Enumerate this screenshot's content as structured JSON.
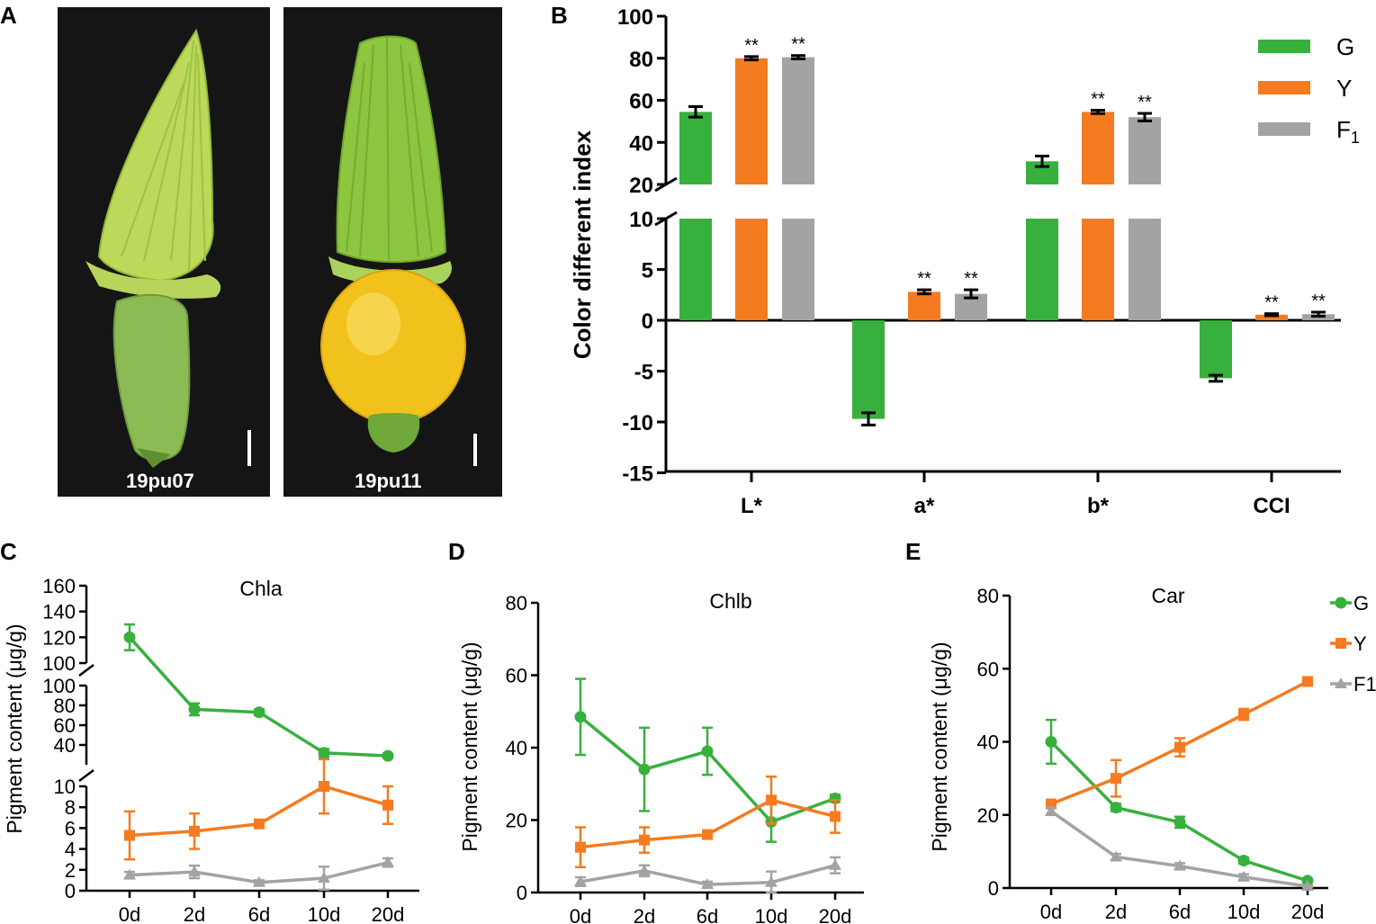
{
  "panels": {
    "A": {
      "letter": "A",
      "photos": [
        {
          "label": "19pu07"
        },
        {
          "label": "19pu11"
        }
      ]
    },
    "B": {
      "letter": "B",
      "ylabel": "Color different index",
      "yticks_upper": [
        "20",
        "40",
        "60",
        "80",
        "100"
      ],
      "yticks_lower": [
        "-15",
        "-10",
        "-5",
        "0",
        "5",
        "10"
      ],
      "categories": [
        "L*",
        "a*",
        "b*",
        "CCI"
      ],
      "legend": [
        {
          "name": "G",
          "sub": ""
        },
        {
          "name": "Y",
          "sub": ""
        },
        {
          "name": "F",
          "sub": "1"
        }
      ],
      "sig_label": "**"
    },
    "C": {
      "letter": "C",
      "title": "Chla",
      "ylabel": "Pigment content (μg/g)"
    },
    "D": {
      "letter": "D",
      "title": "Chlb",
      "ylabel": "Pigment content (μg/g)"
    },
    "E": {
      "letter": "E",
      "title": "Car",
      "ylabel": "Pigment content (μg/g)",
      "legend": [
        "G",
        "Y",
        "F1"
      ]
    }
  },
  "colors": {
    "G": "#38b03e",
    "Y": "#f47b20",
    "F1": "#a3a3a3",
    "photo_bg": "#111111",
    "fruit_green": "#8cbb55",
    "fruit_yellow": "#f1c21b",
    "flower_green": "#8ec63f",
    "flower_light": "#c9e26a"
  },
  "chart_data": [
    {
      "panel": "B",
      "type": "bar",
      "title": "",
      "xlabel": "",
      "ylabel": "Color different index",
      "categories": [
        "L*",
        "a*",
        "b*",
        "CCI"
      ],
      "axis_break": {
        "lower_range": [
          -15,
          10
        ],
        "upper_range": [
          20,
          100
        ]
      },
      "series": [
        {
          "name": "G",
          "values": [
            54.5,
            -9.7,
            31.0,
            -5.7
          ],
          "errors": [
            2.5,
            0.6,
            2.5,
            0.3
          ],
          "significant": [
            false,
            false,
            false,
            false
          ]
        },
        {
          "name": "Y",
          "values": [
            80.0,
            2.8,
            54.5,
            0.55
          ],
          "errors": [
            0.8,
            0.2,
            0.8,
            0.1
          ],
          "significant": [
            true,
            true,
            true,
            true
          ]
        },
        {
          "name": "F1",
          "values": [
            80.5,
            2.6,
            52.0,
            0.6
          ],
          "errors": [
            0.8,
            0.4,
            1.8,
            0.2
          ],
          "significant": [
            true,
            true,
            true,
            true
          ]
        }
      ]
    },
    {
      "panel": "C",
      "type": "line",
      "title": "Chla",
      "ylabel": "Pigment content (μg/g)",
      "categories": [
        "0d",
        "2d",
        "6d",
        "10d",
        "20d"
      ],
      "segments": [
        {
          "range": [
            0,
            10
          ],
          "ticks": [
            0,
            2,
            4,
            6,
            8,
            10
          ]
        },
        {
          "range": [
            20,
            100
          ],
          "ticks": [
            40,
            60,
            80,
            100
          ]
        },
        {
          "range": [
            100,
            160
          ],
          "ticks": [
            100,
            120,
            140,
            160
          ]
        }
      ],
      "series": [
        {
          "name": "G",
          "marker": "circle",
          "values": [
            120,
            76,
            73,
            32,
            29
          ],
          "errors": [
            10,
            6,
            3,
            4,
            2
          ]
        },
        {
          "name": "Y",
          "marker": "square",
          "values": [
            5.3,
            5.7,
            6.4,
            10.0,
            8.2
          ],
          "errors": [
            2.3,
            1.7,
            0.3,
            2.6,
            1.8
          ]
        },
        {
          "name": "F1",
          "marker": "triangle",
          "values": [
            1.5,
            1.8,
            0.8,
            1.2,
            2.7
          ],
          "errors": [
            0.3,
            0.6,
            0.2,
            1.1,
            0.4
          ]
        }
      ]
    },
    {
      "panel": "D",
      "type": "line",
      "title": "Chlb",
      "ylabel": "Pigment content (μg/g)",
      "categories": [
        "0d",
        "2d",
        "6d",
        "10d",
        "20d"
      ],
      "ylim": [
        0,
        80
      ],
      "yticks": [
        0,
        20,
        40,
        60,
        80
      ],
      "series": [
        {
          "name": "G",
          "marker": "circle",
          "values": [
            48.5,
            34,
            39,
            19.5,
            26
          ],
          "errors": [
            10.5,
            11.5,
            6.5,
            5.5,
            1
          ]
        },
        {
          "name": "Y",
          "marker": "square",
          "values": [
            12.5,
            14.5,
            16,
            25.5,
            21
          ],
          "errors": [
            5.5,
            3.5,
            0.8,
            6.5,
            4.5
          ]
        },
        {
          "name": "F1",
          "marker": "triangle",
          "values": [
            3,
            6,
            2.2,
            2.8,
            7.5
          ],
          "errors": [
            1.2,
            1.5,
            0.8,
            3,
            2.2
          ]
        }
      ]
    },
    {
      "panel": "E",
      "type": "line",
      "title": "Car",
      "ylabel": "Pigment content (μg/g)",
      "categories": [
        "0d",
        "2d",
        "6d",
        "10d",
        "20d"
      ],
      "ylim": [
        0,
        80
      ],
      "yticks": [
        0,
        20,
        40,
        60,
        80
      ],
      "legend": [
        "G",
        "Y",
        "F1"
      ],
      "series": [
        {
          "name": "G",
          "marker": "circle",
          "values": [
            40,
            22,
            18,
            7.5,
            2
          ],
          "errors": [
            6,
            1,
            1.5,
            0.8,
            0.4
          ]
        },
        {
          "name": "Y",
          "marker": "square",
          "values": [
            23,
            30,
            38.5,
            47.5,
            56.5
          ],
          "errors": [
            1,
            5,
            2.5,
            1.5,
            0.8
          ]
        },
        {
          "name": "F1",
          "marker": "triangle",
          "values": [
            21,
            8.5,
            6,
            3,
            0.5
          ],
          "errors": [
            1,
            0.8,
            0.8,
            0.8,
            0.2
          ]
        }
      ]
    }
  ]
}
